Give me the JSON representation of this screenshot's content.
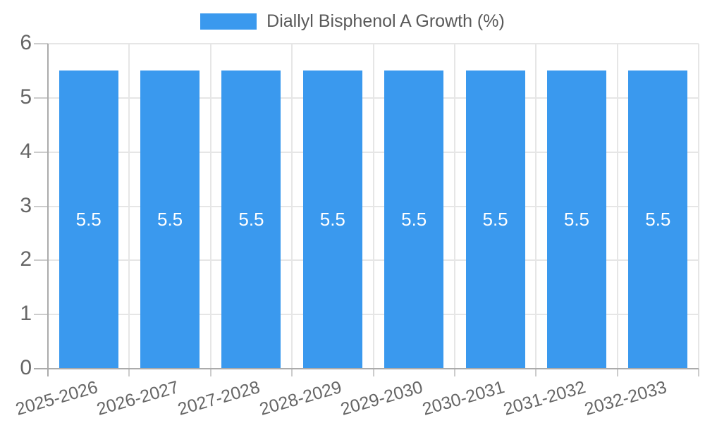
{
  "legend": {
    "label": "Diallyl Bisphenol A Growth (%)"
  },
  "chart_data": {
    "type": "bar",
    "title": "Diallyl Bisphenol A Growth (%)",
    "categories": [
      "2025-2026",
      "2026-2027",
      "2027-2028",
      "2028-2029",
      "2029-2030",
      "2030-2031",
      "2031-2032",
      "2032-2033"
    ],
    "values": [
      5.5,
      5.5,
      5.5,
      5.5,
      5.5,
      5.5,
      5.5,
      5.5
    ],
    "bar_labels": [
      "5.5",
      "5.5",
      "5.5",
      "5.5",
      "5.5",
      "5.5",
      "5.5",
      "5.5"
    ],
    "xlabel": "",
    "ylabel": "",
    "ylim": [
      0,
      6
    ],
    "yticks": [
      0,
      1,
      2,
      3,
      4,
      5,
      6
    ],
    "grid": true,
    "legend_position": "top-center",
    "colors": {
      "bar": "#3A99EE",
      "grid": "#e6e6e6",
      "axis": "#ababab",
      "tick_mark": "#cccccc",
      "tick_text": "#666666",
      "legend_text": "#595959",
      "bar_label": "#ffffff",
      "background": "#ffffff"
    }
  }
}
